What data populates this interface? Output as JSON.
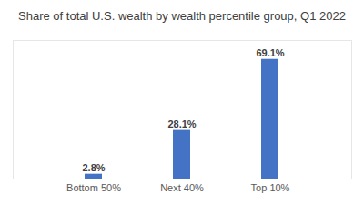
{
  "chart_data": {
    "type": "bar",
    "title": "Share of total U.S. wealth by wealth percentile group, Q1 2022",
    "categories": [
      "Bottom 50%",
      "Next 40%",
      "Top 10%"
    ],
    "values": [
      2.8,
      28.1,
      69.1
    ],
    "value_labels": [
      "2.8%",
      "28.1%",
      "69.1%"
    ],
    "color": "#4472c4",
    "ylim": [
      0,
      80
    ],
    "grid": false,
    "data_labels": true,
    "tick_labels": "x"
  }
}
